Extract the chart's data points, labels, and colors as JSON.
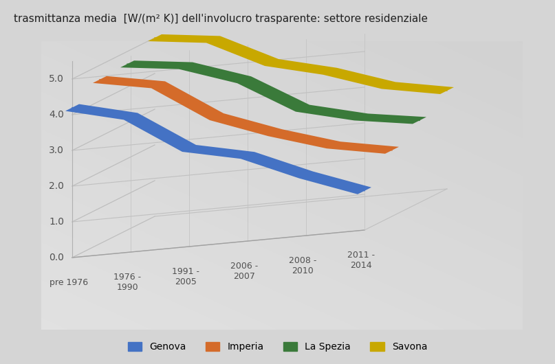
{
  "title": "trasmittanza media  [W/(m² K)] dell'involucro trasparente: settore residenziale",
  "categories": [
    "pre 1976",
    "1976 -\n1990",
    "1991 -\n2005",
    "2006 -\n2007",
    "2008 -\n2010",
    "2011 -\n2014"
  ],
  "series_order": [
    "Savona",
    "La Spezia",
    "Imperia",
    "Genova"
  ],
  "series": {
    "Genova": {
      "color": "#4472C4",
      "values": [
        4.2,
        3.8,
        2.75,
        2.4,
        1.7,
        1.1
      ],
      "depth": 0
    },
    "Imperia": {
      "color": "#D46B2A",
      "values": [
        4.6,
        4.3,
        3.25,
        2.65,
        2.15,
        1.85
      ],
      "depth": 1
    },
    "La Spezia": {
      "color": "#3A7A3A",
      "values": [
        4.65,
        4.45,
        3.9,
        2.95,
        2.55,
        2.3
      ],
      "depth": 2
    },
    "Savona": {
      "color": "#C8A800",
      "values": [
        5.0,
        4.8,
        4.0,
        3.6,
        3.05,
        2.75
      ],
      "depth": 3
    }
  },
  "yticks": [
    0.0,
    1.0,
    2.0,
    3.0,
    4.0,
    5.0
  ],
  "ylim": [
    0.0,
    5.5
  ],
  "n_series": 4,
  "n_cats": 6,
  "background_color": "#D5D5D5",
  "legend_order": [
    "Genova",
    "Imperia",
    "La Spezia",
    "Savona"
  ],
  "line_width": 12
}
